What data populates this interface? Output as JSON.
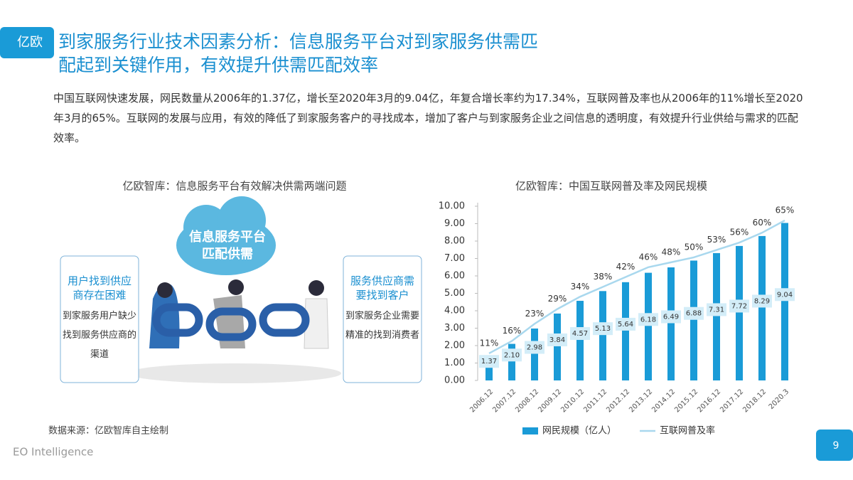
{
  "header": {
    "logo": "亿欧",
    "title_lines": [
      "到家服务行业技术因素分析：信息服务平台对到家服务供需匹",
      "配起到关键作用，有效提升供需匹配效率"
    ]
  },
  "body": "中国互联网快速发展，网民数量从2006年的1.37亿，增长至2020年3月的9.04亿，年复合增长率约为17.34%，互联网普及率也从2006年的11%增长至2020年3月的65%。互联网的发展与应用，有效的降低了到家服务客户的寻找成本，增加了客户与到家服务企业之间信息的透明度，有效提升行业供给与需求的匹配效率。",
  "diagram": {
    "caption": "亿欧智库：信息服务平台有效解决供需两端问题",
    "cloud": "信息服务平台匹配供需",
    "left": {
      "title": "用户找到供应商存在困难",
      "text": "到家服务用户缺少找到服务供应商的渠道"
    },
    "right": {
      "title": "服务供应商需要找到客户",
      "text": "到家服务企业需要精准的找到消费者"
    }
  },
  "chart_data": {
    "type": "bar",
    "title": "亿欧智库：中国互联网普及率及网民规模",
    "categories": [
      "2006.12",
      "2007.12",
      "2008.12",
      "2009.12",
      "2010.12",
      "2011.12",
      "2012.12",
      "2013.12",
      "2014.12",
      "2015.12",
      "2016.12",
      "2017.12",
      "2018.12",
      "2020.3"
    ],
    "series": [
      {
        "name": "网民规模（亿人）",
        "type": "bar",
        "color": "#1a9bd7",
        "values": [
          1.37,
          2.1,
          2.98,
          3.84,
          4.57,
          5.13,
          5.64,
          6.18,
          6.49,
          6.88,
          7.31,
          7.72,
          8.29,
          9.04
        ],
        "value_labels": [
          "1.37",
          "2.10",
          "2.98",
          "3.84",
          "4.57",
          "5.13",
          "5.64",
          "6.18",
          "6.49",
          "6.88",
          "7.31",
          "7.72",
          "8.29",
          "9.04"
        ]
      },
      {
        "name": "互联网普及率",
        "type": "line",
        "color": "#a9d8ee",
        "values": [
          11,
          16,
          23,
          29,
          34,
          38,
          42,
          46,
          48,
          50,
          53,
          56,
          60,
          65
        ],
        "value_labels": [
          "11%",
          "16%",
          "23%",
          "29%",
          "34%",
          "38%",
          "42%",
          "46%",
          "48%",
          "50%",
          "53%",
          "56%",
          "60%",
          "65%"
        ]
      }
    ],
    "ylim": [
      0,
      10
    ],
    "yticks": [
      {
        "value": 0,
        "label": "0.00"
      },
      {
        "value": 1,
        "label": "1.00"
      },
      {
        "value": 2,
        "label": "2.00"
      },
      {
        "value": 3,
        "label": "3.00"
      },
      {
        "value": 4,
        "label": "4.00"
      },
      {
        "value": 5,
        "label": "5.00"
      },
      {
        "value": 6,
        "label": "6.00"
      },
      {
        "value": 7,
        "label": "7.00"
      },
      {
        "value": 8,
        "label": "8.00"
      },
      {
        "value": 9,
        "label": "9.00"
      },
      {
        "value": 10,
        "label": "10.00"
      }
    ],
    "grid": false,
    "legend": "bottom"
  },
  "source": "数据来源：亿欧智库自主绘制",
  "footer": {
    "brand": "EO Intelligence",
    "page": 9
  }
}
